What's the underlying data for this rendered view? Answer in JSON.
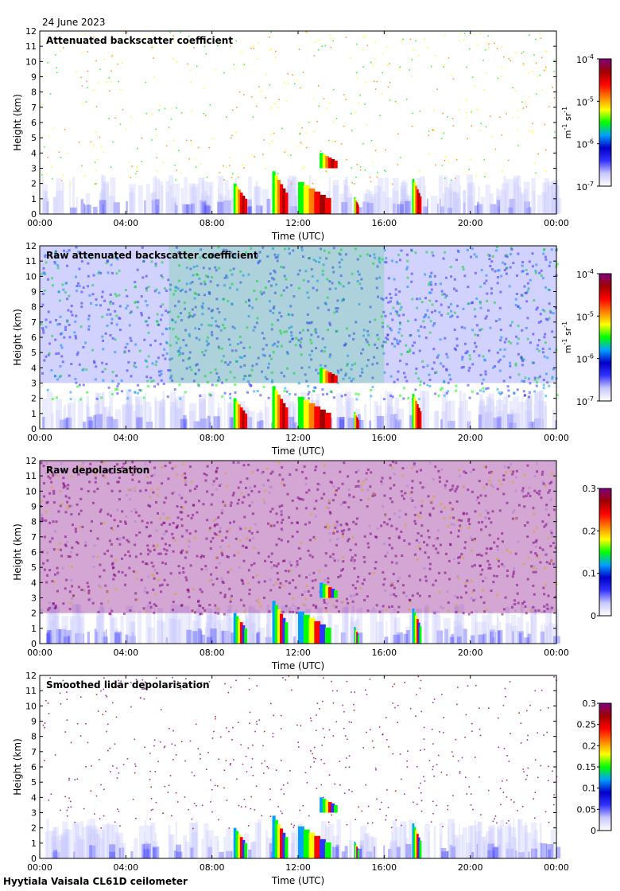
{
  "date": "24 June 2023",
  "footer": "Hyytiala Vaisala CL61D ceilometer",
  "colors": {
    "jet": [
      "#ffffff",
      "#c8c8ff",
      "#3232ff",
      "#0000c8",
      "#00a0ff",
      "#00ff00",
      "#ffff00",
      "#ff8000",
      "#ff0000",
      "#a00000",
      "#800080"
    ]
  },
  "chart_data": [
    {
      "type": "heatmap",
      "title": "Attenuated backscatter coefficient",
      "xlabel": "Time (UTC)",
      "ylabel": "Height (km)",
      "xlim": [
        0,
        24
      ],
      "ylim": [
        0,
        12
      ],
      "x_ticks": [
        "00:00",
        "04:00",
        "08:00",
        "12:00",
        "16:00",
        "20:00",
        "00:00"
      ],
      "y_ticks": [
        "0",
        "1",
        "2",
        "3",
        "4",
        "5",
        "6",
        "7",
        "8",
        "9",
        "10",
        "11",
        "12"
      ],
      "colorbar": {
        "scale": "log",
        "range": [
          1e-07,
          0.0001
        ],
        "ticks": [
          {
            "base": "10",
            "exp": "-7"
          },
          {
            "base": "10",
            "exp": "-6"
          },
          {
            "base": "10",
            "exp": "-5"
          },
          {
            "base": "10",
            "exp": "-4"
          }
        ],
        "units": {
          "m_exp": "-1",
          "sr_exp": "-1"
        }
      },
      "boundary_layer_top_km": 2.6,
      "clouds": [
        {
          "t0": 9.0,
          "t1": 9.6,
          "h0": 0.0,
          "h1": 2.0
        },
        {
          "t0": 10.8,
          "t1": 11.5,
          "h0": 0.0,
          "h1": 2.8
        },
        {
          "t0": 12.0,
          "t1": 13.5,
          "h0": 0.0,
          "h1": 2.1
        },
        {
          "t0": 13.0,
          "t1": 13.8,
          "h0": 3.0,
          "h1": 4.0
        },
        {
          "t0": 14.6,
          "t1": 14.8,
          "h0": 0.0,
          "h1": 1.1
        },
        {
          "t0": 17.3,
          "t1": 17.7,
          "h0": 0.0,
          "h1": 2.3
        }
      ]
    },
    {
      "type": "heatmap",
      "title": "Raw attenuated backscatter coefficient",
      "xlabel": "Time (UTC)",
      "ylabel": "Height (km)",
      "xlim": [
        0,
        24
      ],
      "ylim": [
        0,
        12
      ],
      "x_ticks": [
        "00:00",
        "04:00",
        "08:00",
        "12:00",
        "16:00",
        "20:00",
        "00:00"
      ],
      "y_ticks": [
        "0",
        "1",
        "2",
        "3",
        "4",
        "5",
        "6",
        "7",
        "8",
        "9",
        "10",
        "11",
        "12"
      ],
      "colorbar": {
        "scale": "log",
        "range": [
          1e-07,
          0.0001
        ],
        "ticks": [
          {
            "base": "10",
            "exp": "-7"
          },
          {
            "base": "10",
            "exp": "-6"
          },
          {
            "base": "10",
            "exp": "-5"
          },
          {
            "base": "10",
            "exp": "-4"
          }
        ],
        "units": {
          "m_exp": "-1",
          "sr_exp": "-1"
        }
      }
    },
    {
      "type": "heatmap",
      "title": "Raw depolarisation",
      "xlabel": "Time (UTC)",
      "ylabel": "Height (km)",
      "xlim": [
        0,
        24
      ],
      "ylim": [
        0,
        12
      ],
      "x_ticks": [
        "00:00",
        "04:00",
        "08:00",
        "12:00",
        "16:00",
        "20:00",
        "00:00"
      ],
      "y_ticks": [
        "0",
        "1",
        "2",
        "3",
        "4",
        "5",
        "6",
        "7",
        "8",
        "9",
        "10",
        "11",
        "12"
      ],
      "colorbar": {
        "scale": "linear",
        "range": [
          0,
          0.3
        ],
        "ticks": [
          "0",
          "0.1",
          "0.2",
          "0.3"
        ]
      }
    },
    {
      "type": "heatmap",
      "title": "Smoothed lidar depolarisation",
      "xlabel": "Time (UTC)",
      "ylabel": "Height (km)",
      "xlim": [
        0,
        24
      ],
      "ylim": [
        0,
        12
      ],
      "x_ticks": [
        "00:00",
        "04:00",
        "08:00",
        "12:00",
        "16:00",
        "20:00",
        "00:00"
      ],
      "y_ticks": [
        "0",
        "1",
        "2",
        "3",
        "4",
        "5",
        "6",
        "7",
        "8",
        "9",
        "10",
        "11",
        "12"
      ],
      "colorbar": {
        "scale": "linear",
        "range": [
          0,
          0.3
        ],
        "ticks": [
          "0",
          "0.05",
          "0.1",
          "0.15",
          "0.2",
          "0.25",
          "0.3"
        ]
      }
    }
  ]
}
